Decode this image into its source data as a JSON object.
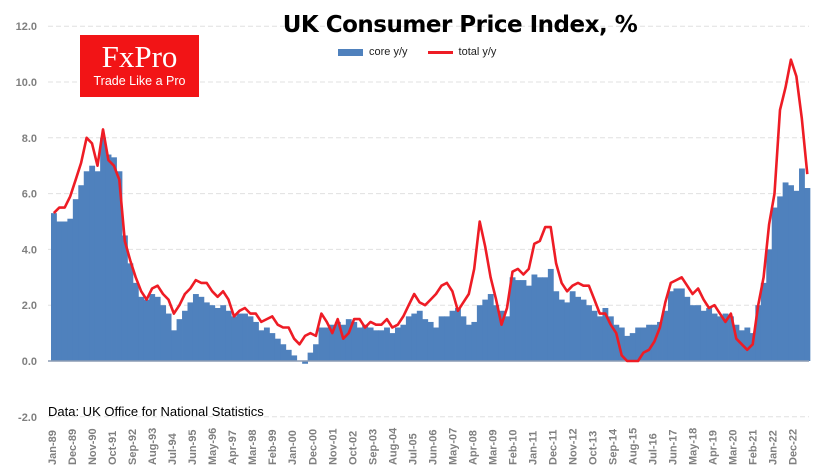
{
  "logo": {
    "brand": "FxPro",
    "tagline": "Trade Like a Pro"
  },
  "colors": {
    "core": "#4f81bd",
    "total": "#ee1c25",
    "grid": "#e0e0e0",
    "axis_text": "#7f7f7f"
  },
  "chart_data": {
    "type": "bar+line",
    "title": "UK Consumer Price Index, %",
    "source": "Data: UK Office for National Statistics",
    "xlabel": "",
    "ylabel": "",
    "ylim": [
      -2,
      12
    ],
    "yticks": [
      "-2.0",
      "0.0",
      "2.0",
      "4.0",
      "6.0",
      "8.0",
      "10.0",
      "12.0"
    ],
    "grid": true,
    "legend_position": "top-center",
    "frequency": "quarterly (approx., Q1 1989 – Q3 2023)",
    "xtick_labels": [
      "Jan-89",
      "Dec-89",
      "Nov-90",
      "Oct-91",
      "Sep-92",
      "Aug-93",
      "Jul-94",
      "Jun-95",
      "May-96",
      "Apr-97",
      "Mar-98",
      "Feb-99",
      "Jan-00",
      "Dec-00",
      "Nov-01",
      "Oct-02",
      "Sep-03",
      "Aug-04",
      "Jul-05",
      "Jun-06",
      "May-07",
      "Apr-08",
      "Mar-09",
      "Feb-10",
      "Jan-11",
      "Dec-11",
      "Nov-12",
      "Oct-13",
      "Sep-14",
      "Aug-15",
      "Jul-16",
      "Jun-17",
      "May-18",
      "Apr-19",
      "Mar-20",
      "Feb-21",
      "Jan-22",
      "Dec-22"
    ],
    "series": [
      {
        "name": "core y/y",
        "kind": "bar",
        "values": [
          5.3,
          5.0,
          5.0,
          5.1,
          5.8,
          6.3,
          6.8,
          7.0,
          6.8,
          8.0,
          7.4,
          7.3,
          6.8,
          4.5,
          3.5,
          2.8,
          2.3,
          2.2,
          2.4,
          2.3,
          2.0,
          1.7,
          1.1,
          1.5,
          1.8,
          2.1,
          2.4,
          2.3,
          2.1,
          2.0,
          1.9,
          2.0,
          1.8,
          1.6,
          1.7,
          1.7,
          1.6,
          1.4,
          1.1,
          1.2,
          1.0,
          0.8,
          0.6,
          0.4,
          0.2,
          0.0,
          -0.1,
          0.3,
          0.6,
          1.2,
          1.2,
          1.3,
          1.4,
          1.3,
          1.5,
          1.4,
          1.2,
          1.3,
          1.2,
          1.1,
          1.1,
          1.2,
          1.0,
          1.2,
          1.3,
          1.6,
          1.7,
          1.8,
          1.5,
          1.4,
          1.2,
          1.6,
          1.6,
          1.8,
          1.9,
          1.6,
          1.3,
          1.4,
          2.0,
          2.2,
          2.4,
          2.0,
          1.8,
          1.6,
          3.0,
          2.9,
          2.9,
          2.7,
          3.1,
          3.0,
          3.0,
          3.3,
          2.5,
          2.2,
          2.1,
          2.5,
          2.3,
          2.2,
          2.0,
          1.8,
          1.6,
          1.9,
          1.6,
          1.3,
          1.2,
          0.9,
          1.0,
          1.2,
          1.2,
          1.3,
          1.3,
          1.4,
          1.8,
          2.5,
          2.6,
          2.6,
          2.3,
          2.0,
          2.0,
          1.8,
          1.9,
          1.7,
          1.6,
          1.7,
          1.6,
          1.3,
          1.1,
          1.2,
          1.0,
          2.0,
          2.8,
          4.0,
          5.5,
          5.9,
          6.4,
          6.3,
          6.1,
          6.9,
          6.2
        ]
      },
      {
        "name": "total y/y",
        "kind": "line",
        "values": [
          5.3,
          5.5,
          5.5,
          5.9,
          6.5,
          7.1,
          8.0,
          7.8,
          7.0,
          8.3,
          7.2,
          7.0,
          6.5,
          4.3,
          3.6,
          3.0,
          2.5,
          2.2,
          2.6,
          2.7,
          2.4,
          2.2,
          1.7,
          2.0,
          2.4,
          2.6,
          2.9,
          2.8,
          2.8,
          2.5,
          2.3,
          2.5,
          2.2,
          1.6,
          1.8,
          1.9,
          1.7,
          1.7,
          1.4,
          1.5,
          1.6,
          1.3,
          1.2,
          1.2,
          0.8,
          0.6,
          0.9,
          1.0,
          0.9,
          1.7,
          1.4,
          1.0,
          1.5,
          0.8,
          1.0,
          1.5,
          1.5,
          1.2,
          1.4,
          1.3,
          1.3,
          1.5,
          1.2,
          1.3,
          1.6,
          2.0,
          2.4,
          2.1,
          2.0,
          2.2,
          2.4,
          2.7,
          2.8,
          2.5,
          1.8,
          2.1,
          2.4,
          3.3,
          5.0,
          4.1,
          3.0,
          2.2,
          1.3,
          1.9,
          3.2,
          3.3,
          3.1,
          3.3,
          4.2,
          4.3,
          4.8,
          4.8,
          3.5,
          2.8,
          2.5,
          2.7,
          2.8,
          2.7,
          2.7,
          2.2,
          1.7,
          1.7,
          1.3,
          1.0,
          0.2,
          0.0,
          0.0,
          0.0,
          0.3,
          0.4,
          0.7,
          1.2,
          2.1,
          2.8,
          2.9,
          3.0,
          2.7,
          2.4,
          2.6,
          2.2,
          1.9,
          2.0,
          1.7,
          1.4,
          1.7,
          0.8,
          0.6,
          0.4,
          0.6,
          2.0,
          3.0,
          4.9,
          6.0,
          9.0,
          9.8,
          10.8,
          10.2,
          8.7,
          6.7
        ]
      }
    ]
  }
}
